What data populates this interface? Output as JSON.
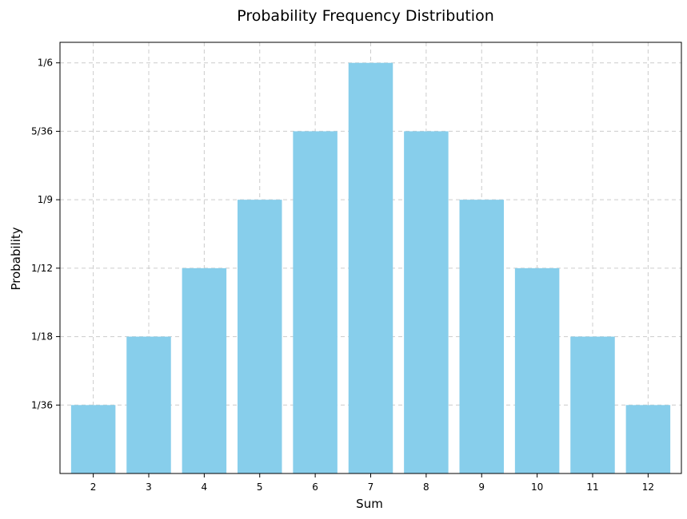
{
  "chart_data": {
    "type": "bar",
    "title": "Probability Frequency Distribution",
    "xlabel": "Sum",
    "ylabel": "Probability",
    "categories": [
      "2",
      "3",
      "4",
      "5",
      "6",
      "7",
      "8",
      "9",
      "10",
      "11",
      "12"
    ],
    "values": [
      1,
      2,
      3,
      4,
      5,
      6,
      5,
      4,
      3,
      2,
      1
    ],
    "value_unit": "1/36",
    "ylim": [
      0,
      6.3
    ],
    "yticks": [
      {
        "value": 1,
        "label": "1/36"
      },
      {
        "value": 2,
        "label": "1/18"
      },
      {
        "value": 3,
        "label": "1/12"
      },
      {
        "value": 4,
        "label": "1/9"
      },
      {
        "value": 5,
        "label": "5/36"
      },
      {
        "value": 6,
        "label": "1/6"
      }
    ],
    "grid": true,
    "bar_color": "#87CEEB"
  }
}
